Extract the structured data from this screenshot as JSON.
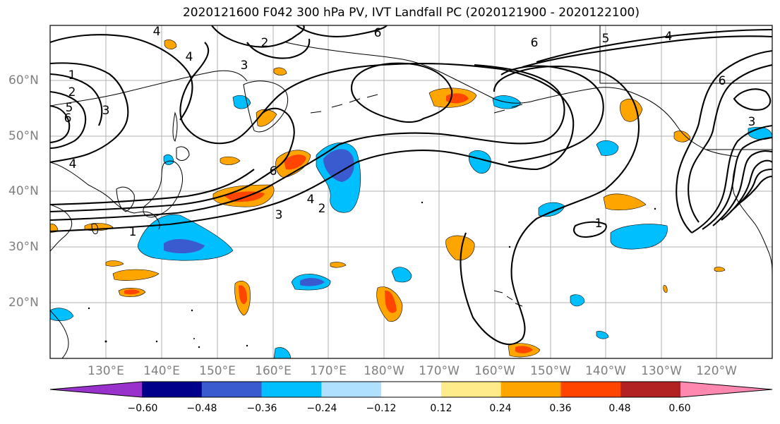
{
  "title": "2020121600 F042 300 hPa PV, IVT Landfall PC (2020121900 - 2020122100)",
  "lat_labels": [
    "60°N",
    "50°N",
    "40°N",
    "30°N",
    "20°N"
  ],
  "lon_labels": [
    "130°E",
    "140°E",
    "150°E",
    "160°E",
    "170°E",
    "180°W",
    "170°W",
    "160°W",
    "150°W",
    "140°W",
    "130°W",
    "120°W"
  ],
  "colorbar": {
    "ticks": [
      "−0.60",
      "−0.48",
      "−0.36",
      "−0.24",
      "−0.12",
      "0.12",
      "0.24",
      "0.36",
      "0.48",
      "0.60"
    ],
    "colors": [
      "#9932cc",
      "#00008b",
      "#3a5bcf",
      "#00bfff",
      "#b0e0ff",
      "#ffffff",
      "#ffeb8a",
      "#ffa500",
      "#ff4500",
      "#b22222",
      "#ff88b0"
    ]
  },
  "contour_labels": [
    "4",
    "2",
    "6",
    "6",
    "4",
    "5",
    "4",
    "1",
    "2",
    "3",
    "3",
    "5",
    "6",
    "4",
    "6",
    "4",
    "2",
    "3",
    "1",
    "1",
    "3",
    "6"
  ],
  "colors": {
    "land_outline": "#000000",
    "grid": "#b0b0b0",
    "contour": "#000000",
    "label_gray": "#7f7f7f"
  }
}
